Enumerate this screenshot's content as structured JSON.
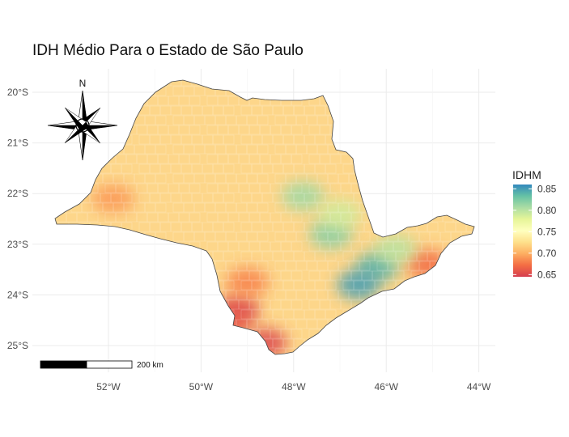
{
  "chart_data": {
    "type": "map",
    "title": "IDH Médio Para o Estado de São Paulo",
    "x_ticks": [
      "52°W",
      "50°W",
      "48°W",
      "46°W",
      "44°W"
    ],
    "x_values": [
      -52,
      -50,
      -48,
      -46,
      -44
    ],
    "y_ticks": [
      "20°S",
      "21°S",
      "22°S",
      "23°S",
      "24°S",
      "25°S"
    ],
    "y_values": [
      -20,
      -21,
      -22,
      -23,
      -24,
      -25
    ],
    "xlim": [
      -53.3,
      -43.8
    ],
    "ylim": [
      -25.5,
      -19.6
    ],
    "grid": true,
    "legend": {
      "title": "IDHM",
      "placement": "right",
      "range": [
        0.645,
        0.86
      ],
      "labels": [
        "0.85",
        "0.80",
        "0.75",
        "0.70",
        "0.65"
      ],
      "values": [
        0.85,
        0.8,
        0.75,
        0.7,
        0.65
      ],
      "colors": [
        "#d53e4f",
        "#f46d43",
        "#fdae61",
        "#fee08b",
        "#ffffbf",
        "#e6f598",
        "#abdda4",
        "#66c2a5",
        "#3288bd"
      ]
    },
    "scale_bar": {
      "label": "200 km"
    },
    "north_arrow": {
      "label": "N"
    },
    "state_fill": "#fdd68a",
    "regions": [
      {
        "lon": -49.2,
        "lat": -24.3,
        "value": 0.65
      },
      {
        "lon": -48.6,
        "lat": -24.95,
        "value": 0.65
      },
      {
        "lon": -49.4,
        "lat": -24.55,
        "value": 0.66
      },
      {
        "lon": -46.2,
        "lat": -23.45,
        "value": 0.84
      },
      {
        "lon": -46.6,
        "lat": -23.8,
        "value": 0.85
      },
      {
        "lon": -47.2,
        "lat": -22.8,
        "value": 0.82
      },
      {
        "lon": -47.8,
        "lat": -22.05,
        "value": 0.81
      },
      {
        "lon": -51.9,
        "lat": -22.1,
        "value": 0.69
      },
      {
        "lon": -45.1,
        "lat": -23.4,
        "value": 0.67
      },
      {
        "lon": -49.0,
        "lat": -23.75,
        "value": 0.68
      },
      {
        "lon": -47.0,
        "lat": -22.4,
        "value": 0.79
      },
      {
        "lon": -45.8,
        "lat": -23.1,
        "value": 0.8
      }
    ]
  }
}
